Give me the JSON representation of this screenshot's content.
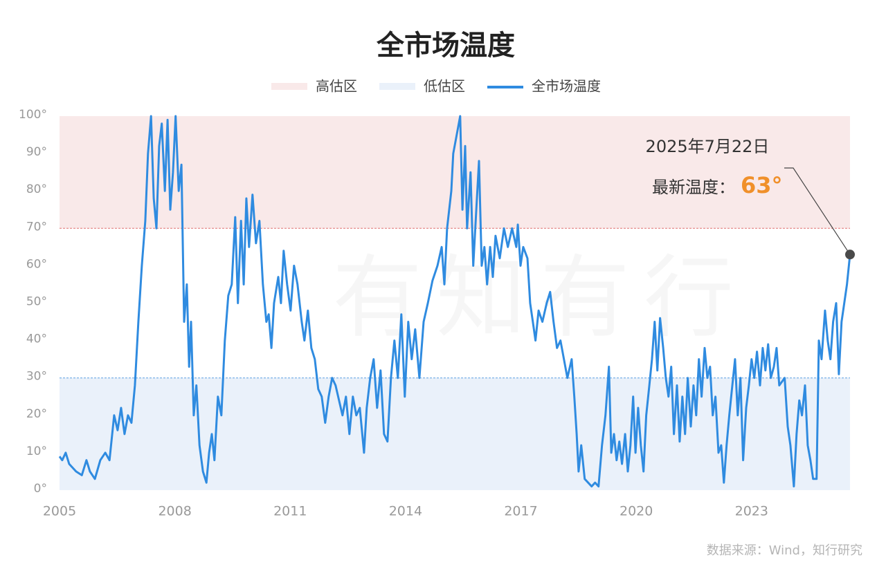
{
  "chart_data": {
    "type": "line",
    "title": "全市场温度",
    "source": "数据来源：Wind，知行研究",
    "watermark": "有知有行",
    "bands": [
      {
        "name": "高估区",
        "range": [
          70,
          100
        ],
        "threshold": 70,
        "color": "#f9e9e9",
        "line_color": "#e07070"
      },
      {
        "name": "低估区",
        "range": [
          0,
          30
        ],
        "threshold": 30,
        "color": "#eaf1fa",
        "line_color": "#5a9ee0"
      }
    ],
    "xlim": [
      2005,
      2025.56
    ],
    "xticks": [
      2005,
      2008,
      2011,
      2014,
      2017,
      2020,
      2023
    ],
    "ylim": [
      0,
      100
    ],
    "yticks": [
      {
        "value": 0,
        "label": "0°"
      },
      {
        "value": 10,
        "label": "10°"
      },
      {
        "value": 20,
        "label": "20°"
      },
      {
        "value": 30,
        "label": "30°"
      },
      {
        "value": 40,
        "label": "40°"
      },
      {
        "value": 50,
        "label": "50°"
      },
      {
        "value": 60,
        "label": "60°"
      },
      {
        "value": 70,
        "label": "70°"
      },
      {
        "value": 80,
        "label": "80°"
      },
      {
        "value": 90,
        "label": "90°"
      },
      {
        "value": 100,
        "label": "100°"
      }
    ],
    "x": [
      2005.0,
      2005.07,
      2005.16,
      2005.25,
      2005.43,
      2005.58,
      2005.7,
      2005.79,
      2005.92,
      2006.06,
      2006.19,
      2006.3,
      2006.42,
      2006.51,
      2006.6,
      2006.69,
      2006.78,
      2006.87,
      2006.96,
      2007.05,
      2007.14,
      2007.23,
      2007.3,
      2007.38,
      2007.45,
      2007.52,
      2007.59,
      2007.66,
      2007.74,
      2007.81,
      2007.88,
      2007.95,
      2008.02,
      2008.1,
      2008.17,
      2008.24,
      2008.31,
      2008.37,
      2008.42,
      2008.49,
      2008.56,
      2008.64,
      2008.73,
      2008.82,
      2008.89,
      2008.96,
      2009.03,
      2009.12,
      2009.21,
      2009.3,
      2009.39,
      2009.48,
      2009.57,
      2009.64,
      2009.72,
      2009.79,
      2009.86,
      2009.93,
      2010.02,
      2010.11,
      2010.2,
      2010.29,
      2010.38,
      2010.44,
      2010.51,
      2010.58,
      2010.69,
      2010.76,
      2010.83,
      2010.92,
      2011.01,
      2011.1,
      2011.19,
      2011.3,
      2011.37,
      2011.46,
      2011.55,
      2011.64,
      2011.73,
      2011.82,
      2011.91,
      2012.0,
      2012.09,
      2012.18,
      2012.27,
      2012.36,
      2012.45,
      2012.54,
      2012.63,
      2012.72,
      2012.81,
      2012.92,
      2012.99,
      2013.08,
      2013.17,
      2013.26,
      2013.35,
      2013.44,
      2013.53,
      2013.62,
      2013.71,
      2013.8,
      2013.89,
      2013.98,
      2014.07,
      2014.16,
      2014.25,
      2014.36,
      2014.47,
      2014.58,
      2014.7,
      2014.83,
      2014.94,
      2015.01,
      2015.08,
      2015.19,
      2015.24,
      2015.33,
      2015.42,
      2015.48,
      2015.55,
      2015.6,
      2015.69,
      2015.76,
      2015.84,
      2015.91,
      2015.98,
      2016.05,
      2016.12,
      2016.2,
      2016.27,
      2016.34,
      2016.45,
      2016.56,
      2016.66,
      2016.77,
      2016.88,
      2016.92,
      2016.99,
      2017.06,
      2017.17,
      2017.24,
      2017.31,
      2017.38,
      2017.46,
      2017.56,
      2017.67,
      2017.76,
      2017.85,
      2017.94,
      2018.03,
      2018.12,
      2018.21,
      2018.32,
      2018.39,
      2018.45,
      2018.5,
      2018.57,
      2018.66,
      2018.75,
      2018.84,
      2018.93,
      2019.02,
      2019.11,
      2019.2,
      2019.29,
      2019.35,
      2019.42,
      2019.49,
      2019.56,
      2019.63,
      2019.71,
      2019.78,
      2019.85,
      2019.92,
      2019.98,
      2020.05,
      2020.12,
      2020.19,
      2020.26,
      2020.34,
      2020.41,
      2020.48,
      2020.55,
      2020.62,
      2020.7,
      2020.77,
      2020.84,
      2020.91,
      2020.98,
      2021.06,
      2021.13,
      2021.2,
      2021.27,
      2021.34,
      2021.42,
      2021.49,
      2021.56,
      2021.63,
      2021.7,
      2021.78,
      2021.85,
      2021.92,
      2021.99,
      2022.06,
      2022.14,
      2022.21,
      2022.28,
      2022.35,
      2022.42,
      2022.5,
      2022.57,
      2022.64,
      2022.71,
      2022.78,
      2022.86,
      2022.93,
      2023.0,
      2023.07,
      2023.14,
      2023.22,
      2023.29,
      2023.36,
      2023.43,
      2023.5,
      2023.58,
      2023.65,
      2023.72,
      2023.79,
      2023.86,
      2023.94,
      2024.01,
      2024.1,
      2024.17,
      2024.24,
      2024.31,
      2024.39,
      2024.46,
      2024.53,
      2024.6,
      2024.69,
      2024.75,
      2024.82,
      2024.91,
      2024.98,
      2025.05,
      2025.12,
      2025.2,
      2025.27,
      2025.34,
      2025.41,
      2025.48,
      2025.56
    ],
    "series": [
      {
        "name": "全市场温度",
        "color": "#2f8be0",
        "values": [
          9,
          8,
          10,
          7,
          5,
          4,
          8,
          5,
          3,
          8,
          10,
          8,
          20,
          16,
          22,
          15,
          20,
          18,
          28,
          45,
          60,
          72,
          90,
          100,
          78,
          70,
          92,
          98,
          80,
          99,
          75,
          85,
          100,
          80,
          87,
          45,
          55,
          33,
          45,
          20,
          28,
          12,
          5,
          2,
          10,
          15,
          8,
          25,
          20,
          40,
          52,
          55,
          73,
          50,
          72,
          55,
          78,
          65,
          79,
          66,
          72,
          55,
          45,
          47,
          38,
          50,
          57,
          50,
          64,
          55,
          48,
          60,
          55,
          45,
          40,
          48,
          38,
          35,
          27,
          25,
          18,
          25,
          30,
          28,
          24,
          20,
          25,
          15,
          25,
          20,
          22,
          10,
          22,
          30,
          35,
          22,
          32,
          15,
          13,
          30,
          40,
          30,
          47,
          25,
          45,
          35,
          43,
          30,
          45,
          50,
          56,
          60,
          65,
          55,
          70,
          80,
          90,
          95,
          100,
          75,
          92,
          70,
          85,
          60,
          75,
          88,
          60,
          65,
          55,
          65,
          57,
          68,
          62,
          70,
          65,
          70,
          65,
          71,
          60,
          65,
          62,
          50,
          45,
          40,
          48,
          45,
          50,
          53,
          45,
          38,
          40,
          35,
          30,
          35,
          25,
          15,
          5,
          12,
          3,
          2,
          1,
          2,
          1,
          12,
          20,
          33,
          10,
          15,
          8,
          13,
          7,
          15,
          5,
          12,
          25,
          10,
          22,
          12,
          5,
          20,
          28,
          35,
          45,
          32,
          46,
          38,
          30,
          25,
          33,
          15,
          28,
          13,
          25,
          15,
          30,
          17,
          28,
          20,
          35,
          25,
          38,
          30,
          33,
          20,
          25,
          10,
          12,
          2,
          12,
          20,
          28,
          35,
          20,
          30,
          8,
          22,
          28,
          35,
          30,
          37,
          28,
          38,
          32,
          39,
          30,
          33,
          38,
          28,
          29,
          30,
          17,
          12,
          1,
          15,
          24,
          20,
          28,
          12,
          8,
          3,
          3,
          40,
          35,
          48,
          40,
          35,
          45,
          50,
          31,
          45,
          50,
          55,
          63
        ]
      }
    ],
    "annotation": {
      "date": "2025年7月22日",
      "label": "最新温度：",
      "value": 63,
      "value_label": "63°"
    },
    "grid": false
  }
}
